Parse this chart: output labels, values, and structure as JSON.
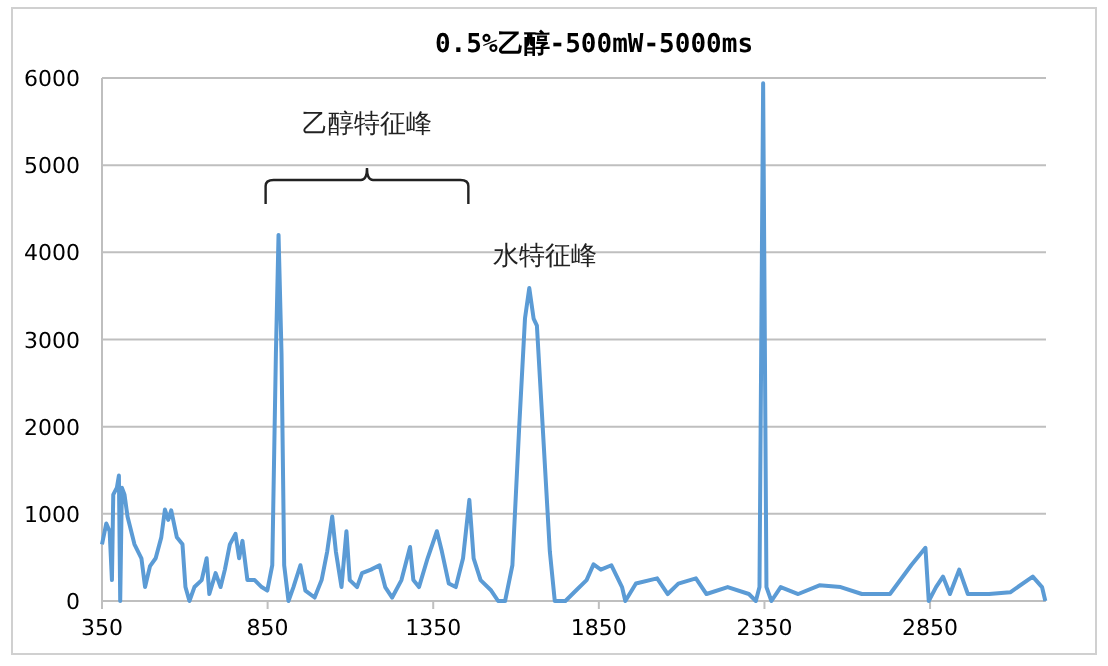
{
  "chart_data": {
    "type": "line",
    "title": "0.5%乙醇-500mW-5000ms",
    "xlim": [
      350,
      3200
    ],
    "xticks": [
      350,
      850,
      1350,
      1850,
      2350,
      2850
    ],
    "ylim": [
      0,
      6000
    ],
    "yticks": [
      0,
      1000,
      2000,
      3000,
      4000,
      5000,
      6000
    ],
    "grid": "y",
    "marker": "none",
    "line_style": "solid",
    "annotations": [
      "乙醇特征峰",
      {
        "text": "水特征峰",
        "x": 1640,
        "y": 3590
      }
    ],
    "series": [
      {
        "color": "#5b9bd5",
        "x": [
          350,
          363,
          373,
          380,
          384,
          395,
          401,
          405,
          410,
          418,
          427,
          448,
          469,
          480,
          495,
          512,
          529,
          540,
          550,
          559,
          576,
          593,
          602,
          614,
          629,
          651,
          666,
          674,
          693,
          708,
          721,
          736,
          753,
          764,
          774,
          789,
          811,
          832,
          849,
          864,
          875,
          883,
          892,
          900,
          913,
          928,
          949,
          964,
          992,
          1013,
          1030,
          1045,
          1056,
          1073,
          1088,
          1098,
          1120,
          1135,
          1162,
          1188,
          1205,
          1226,
          1254,
          1280,
          1290,
          1307,
          1333,
          1361,
          1376,
          1397,
          1418,
          1440,
          1459,
          1472,
          1493,
          1525,
          1546,
          1567,
          1589,
          1610,
          1627,
          1640,
          1653,
          1663,
          1680,
          1702,
          1717,
          1749,
          1781,
          1813,
          1834,
          1856,
          1888,
          1920,
          1930,
          1962,
          2026,
          2058,
          2090,
          2143,
          2175,
          2239,
          2303,
          2324,
          2335,
          2346,
          2356,
          2371,
          2399,
          2452,
          2516,
          2580,
          2644,
          2729,
          2793,
          2836,
          2846,
          2868,
          2889,
          2910,
          2938,
          2964,
          3028,
          3092,
          3160,
          3188,
          3198
        ],
        "values": [
          650,
          890,
          800,
          240,
          1220,
          1300,
          1440,
          0,
          1300,
          1220,
          970,
          650,
          490,
          160,
          400,
          490,
          730,
          1050,
          930,
          1040,
          730,
          650,
          160,
          0,
          160,
          240,
          490,
          80,
          320,
          160,
          360,
          650,
          770,
          490,
          690,
          240,
          240,
          160,
          120,
          410,
          2840,
          4200,
          2840,
          410,
          0,
          160,
          410,
          120,
          40,
          240,
          570,
          970,
          570,
          160,
          800,
          240,
          160,
          320,
          360,
          410,
          160,
          40,
          240,
          620,
          240,
          160,
          490,
          800,
          570,
          200,
          160,
          490,
          1160,
          490,
          240,
          120,
          0,
          0,
          410,
          2030,
          3240,
          3590,
          3240,
          3160,
          2030,
          570,
          0,
          0,
          120,
          240,
          420,
          360,
          410,
          160,
          0,
          200,
          260,
          80,
          200,
          260,
          80,
          160,
          80,
          0,
          160,
          5940,
          160,
          0,
          160,
          80,
          180,
          160,
          80,
          80,
          410,
          610,
          0,
          160,
          280,
          80,
          360,
          80,
          80,
          100,
          280,
          160,
          0
        ]
      }
    ]
  }
}
